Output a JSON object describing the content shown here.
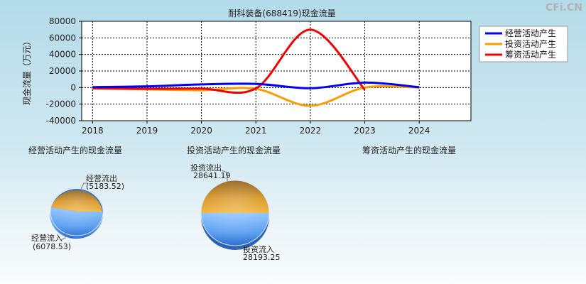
{
  "watermark": "CFi.CN",
  "chart_data": [
    {
      "type": "line",
      "title": "耐科装备(688419)现金流量",
      "ylabel": "现金流量（万元）",
      "x": [
        2018,
        2019,
        2020,
        2021,
        2022,
        2023,
        2024
      ],
      "xlim": [
        2017.8,
        2024.95
      ],
      "ylim": [
        -40000,
        80000
      ],
      "yticks": [
        -40000,
        -20000,
        0,
        20000,
        40000,
        60000,
        80000
      ],
      "grid": true,
      "legend_position": "top-right",
      "series": [
        {
          "name": "经营活动产生",
          "color": "#0000ee",
          "values": [
            500,
            1500,
            3800,
            4500,
            -800,
            6000,
            400
          ]
        },
        {
          "name": "投资活动产生",
          "color": "#f5a000",
          "values": [
            -1200,
            -2000,
            -3200,
            -1500,
            -22000,
            0,
            0
          ]
        },
        {
          "name": "筹资活动产生",
          "color": "#ee0000",
          "values": [
            -800,
            -1500,
            -1200,
            -1000,
            70000,
            -2500,
            null
          ]
        }
      ]
    },
    {
      "type": "pie",
      "title": "经营活动产生的现金流量",
      "slices": [
        {
          "label": "经营流出",
          "value": 5183.52,
          "value_text": "(5183.52)",
          "color": "#e3a52a"
        },
        {
          "label": "经营流入",
          "value": 6078.53,
          "value_text": "(6078.53)",
          "color": "#5a9ff0"
        }
      ]
    },
    {
      "type": "pie",
      "title": "投资活动产生的现金流量",
      "slices": [
        {
          "label": "投资流出",
          "value": 28641.19,
          "value_text": "28641.19",
          "color": "#e3a52a"
        },
        {
          "label": "投资流入",
          "value": 28193.25,
          "value_text": "28193.25",
          "color": "#5a9ff0"
        }
      ]
    },
    {
      "type": "pie",
      "title": "筹资活动产生的现金流量",
      "slices": []
    }
  ]
}
